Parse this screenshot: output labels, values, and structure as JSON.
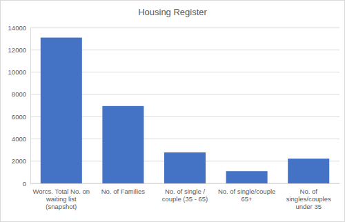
{
  "chart_data": {
    "type": "bar",
    "title": "Housing Register",
    "categories": [
      "Worcs. Total No. on waiting list (snapshot)",
      "No. of Families",
      "No. of single / couple (35 - 65)",
      "No. of single/couple 65+",
      "No. of singles/couples under 35"
    ],
    "values": [
      13100,
      6950,
      2780,
      1100,
      2230
    ],
    "color": "#4472c4",
    "ylim": [
      0,
      14000
    ],
    "yticks": [
      0,
      2000,
      4000,
      6000,
      8000,
      10000,
      12000,
      14000
    ],
    "grid": true
  }
}
